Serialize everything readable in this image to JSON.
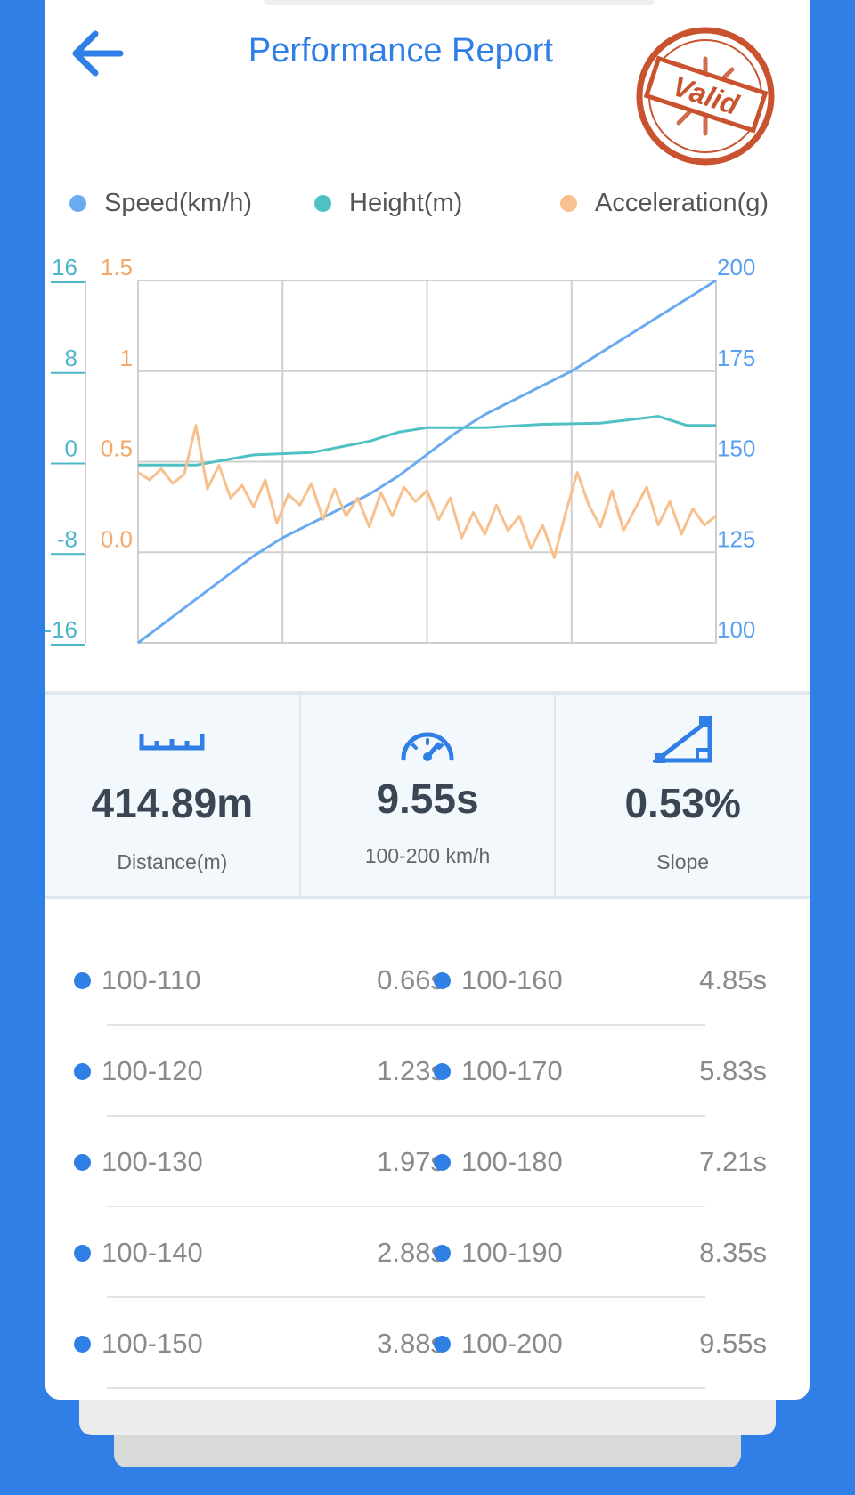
{
  "header": {
    "title": "Performance Report",
    "stamp_text": "Valid"
  },
  "legend": [
    {
      "label": "Speed(km/h)",
      "color": "#6aaaf0"
    },
    {
      "label": "Height(m)",
      "color": "#4fc1c5"
    },
    {
      "label": "Acceleration(g)",
      "color": "#f7c08d"
    }
  ],
  "chart_data": {
    "type": "line",
    "y_axis_height": {
      "ticks": [
        "16",
        "8",
        "0",
        "-8",
        "-16"
      ],
      "range": [
        -16,
        16
      ],
      "color": "#4fb6c9"
    },
    "y_axis_accel": {
      "ticks": [
        "1.5",
        "1",
        "0.5",
        "0.0"
      ],
      "range": [
        -0.5,
        1.5
      ],
      "color": "#f2a86a"
    },
    "y_axis_speed": {
      "ticks": [
        "200",
        "175",
        "150",
        "125",
        "100"
      ],
      "range": [
        100,
        200
      ],
      "color": "#5a9ff0"
    },
    "grid": true,
    "series": [
      {
        "name": "Speed(km/h)",
        "axis": "speed",
        "color": "#6aaaf0",
        "t": [
          0,
          0.05,
          0.1,
          0.15,
          0.2,
          0.25,
          0.3,
          0.35,
          0.4,
          0.45,
          0.5,
          0.55,
          0.6,
          0.65,
          0.7,
          0.75,
          0.8,
          0.85,
          0.9,
          0.95,
          1.0
        ],
        "values": [
          100,
          106,
          112,
          118,
          124,
          129,
          133,
          137,
          141,
          146,
          152,
          158,
          163,
          167,
          171,
          175,
          180,
          185,
          190,
          195,
          200
        ]
      },
      {
        "name": "Height(m)",
        "axis": "height",
        "color": "#4fc1c5",
        "t": [
          0,
          0.1,
          0.2,
          0.3,
          0.4,
          0.45,
          0.5,
          0.6,
          0.7,
          0.8,
          0.9,
          0.95,
          1.0
        ],
        "values": [
          -0.3,
          -0.3,
          0.6,
          0.8,
          1.8,
          2.6,
          3.0,
          3.0,
          3.3,
          3.4,
          4.0,
          3.2,
          3.2
        ]
      },
      {
        "name": "Acceleration(g)",
        "axis": "accel",
        "color": "#f7c08d",
        "t": [
          0,
          0.02,
          0.04,
          0.06,
          0.08,
          0.1,
          0.12,
          0.14,
          0.16,
          0.18,
          0.2,
          0.22,
          0.24,
          0.26,
          0.28,
          0.3,
          0.32,
          0.34,
          0.36,
          0.38,
          0.4,
          0.42,
          0.44,
          0.46,
          0.48,
          0.5,
          0.52,
          0.54,
          0.56,
          0.58,
          0.6,
          0.62,
          0.64,
          0.66,
          0.68,
          0.7,
          0.72,
          0.74,
          0.76,
          0.78,
          0.8,
          0.82,
          0.84,
          0.86,
          0.88,
          0.9,
          0.92,
          0.94,
          0.96,
          0.98,
          1.0
        ],
        "values": [
          0.44,
          0.4,
          0.46,
          0.38,
          0.43,
          0.7,
          0.35,
          0.48,
          0.3,
          0.37,
          0.25,
          0.4,
          0.16,
          0.32,
          0.26,
          0.38,
          0.18,
          0.35,
          0.2,
          0.3,
          0.14,
          0.33,
          0.2,
          0.36,
          0.28,
          0.34,
          0.18,
          0.3,
          0.08,
          0.22,
          0.1,
          0.26,
          0.12,
          0.2,
          0.02,
          0.15,
          -0.03,
          0.22,
          0.44,
          0.26,
          0.14,
          0.34,
          0.12,
          0.24,
          0.36,
          0.15,
          0.28,
          0.1,
          0.24,
          0.15,
          0.2
        ]
      }
    ]
  },
  "stats": [
    {
      "value": "414.89m",
      "label": "Distance(m)",
      "icon": "ruler-icon"
    },
    {
      "value": "9.55s",
      "label": "100-200 km/h",
      "icon": "speedometer-icon"
    },
    {
      "value": "0.53%",
      "label": "Slope",
      "icon": "slope-icon"
    }
  ],
  "splits": [
    {
      "left_range": "100-110",
      "left_time": "0.66s",
      "right_range": "100-160",
      "right_time": "4.85s"
    },
    {
      "left_range": "100-120",
      "left_time": "1.23s",
      "right_range": "100-170",
      "right_time": "5.83s"
    },
    {
      "left_range": "100-130",
      "left_time": "1.97s",
      "right_range": "100-180",
      "right_time": "7.21s"
    },
    {
      "left_range": "100-140",
      "left_time": "2.88s",
      "right_range": "100-190",
      "right_time": "8.35s"
    },
    {
      "left_range": "100-150",
      "left_time": "3.88s",
      "right_range": "100-200",
      "right_time": "9.55s"
    }
  ]
}
